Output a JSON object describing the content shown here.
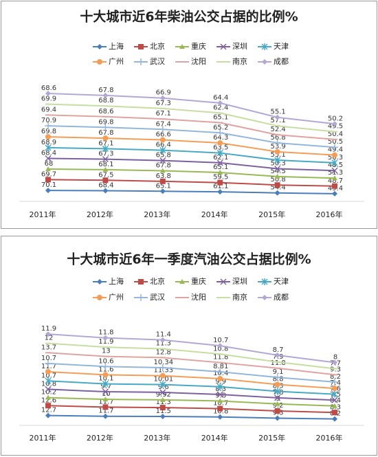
{
  "chart_data": [
    {
      "type": "line",
      "stacked": true,
      "title": "十大城市近6年柴油公交占据的比例%",
      "categories": [
        "2011年",
        "2012年",
        "2013年",
        "2014年",
        "2015年",
        "2016年"
      ],
      "ylim": [
        0,
        800
      ],
      "series": [
        {
          "name": "上海",
          "color": "#4a7ebb",
          "marker": "diamond",
          "values": [
            70.1,
            68.4,
            65.1,
            61.1,
            54.4,
            49.4
          ]
        },
        {
          "name": "北京",
          "color": "#be4b48",
          "marker": "square",
          "values": [
            69.7,
            67.5,
            63.8,
            59.5,
            50.8,
            48.7
          ]
        },
        {
          "name": "重庆",
          "color": "#98b954",
          "marker": "triangle",
          "values": [
            68,
            68.1,
            67.8,
            65.1,
            54.5,
            51.3
          ]
        },
        {
          "name": "深圳",
          "color": "#7d60a0",
          "marker": "x",
          "values": [
            68.4,
            67.3,
            65.8,
            62.1,
            50.3,
            48.5
          ]
        },
        {
          "name": "天津",
          "color": "#46aac5",
          "marker": "asterisk",
          "values": [
            68.9,
            67.1,
            66.4,
            63.5,
            55.1,
            50.3
          ]
        },
        {
          "name": "广州",
          "color": "#f59d56",
          "marker": "circle",
          "values": [
            69.8,
            67.8,
            66.6,
            64.3,
            53.9,
            49.4
          ]
        },
        {
          "name": "武汉",
          "color": "#93b6dc",
          "marker": "plus",
          "values": [
            70.9,
            69.8,
            67.4,
            65.2,
            56.8,
            50.5
          ]
        },
        {
          "name": "沈阳",
          "color": "#e0a3a1",
          "marker": "none",
          "values": [
            69.4,
            68.6,
            67.1,
            65.1,
            52.4,
            50.4
          ]
        },
        {
          "name": "南京",
          "color": "#c6dea0",
          "marker": "none",
          "values": [
            69.9,
            68.8,
            67.3,
            62.4,
            57.1,
            49.5
          ]
        },
        {
          "name": "成都",
          "color": "#b4a7d5",
          "marker": "diamond",
          "values": [
            68.6,
            67.8,
            66.9,
            64.4,
            55.1,
            50.2
          ]
        }
      ]
    },
    {
      "type": "line",
      "stacked": true,
      "title": "十大城市近6年一季度汽油公交占据比例%",
      "categories": [
        "2011年",
        "2012年",
        "2013年",
        "2014年",
        "2015年",
        "2016年"
      ],
      "ylim": [
        0,
        140
      ],
      "series": [
        {
          "name": "上海",
          "color": "#4a7ebb",
          "marker": "diamond",
          "values": [
            12.7,
            11.7,
            11.5,
            10.8,
            9.3,
            8.2
          ]
        },
        {
          "name": "北京",
          "color": "#be4b48",
          "marker": "square",
          "values": [
            12.6,
            11.7,
            11.3,
            10.7,
            9.2,
            8.3
          ]
        },
        {
          "name": "重庆",
          "color": "#98b954",
          "marker": "triangle",
          "values": [
            10.2,
            10,
            9.92,
            9.8,
            9,
            8.4
          ]
        },
        {
          "name": "深圳",
          "color": "#7d60a0",
          "marker": "x",
          "values": [
            10.8,
            9.7,
            9.6,
            8.3,
            7.8,
            7.5
          ]
        },
        {
          "name": "天津",
          "color": "#46aac5",
          "marker": "asterisk",
          "values": [
            10.7,
            10.1,
            10.01,
            9.9,
            8.3,
            7.6
          ]
        },
        {
          "name": "广州",
          "color": "#f59d56",
          "marker": "circle",
          "values": [
            11.7,
            11.6,
            11.33,
            10.4,
            8.8,
            7.4
          ]
        },
        {
          "name": "武汉",
          "color": "#93b6dc",
          "marker": "plus",
          "values": [
            10.7,
            10.6,
            10.34,
            8.81,
            9.1,
            8.2
          ]
        },
        {
          "name": "沈阳",
          "color": "#e0a3a1",
          "marker": "none",
          "values": [
            13.7,
            13,
            12.8,
            11.8,
            11.8,
            9.3
          ]
        },
        {
          "name": "南京",
          "color": "#c6dea0",
          "marker": "none",
          "values": [
            12,
            11.9,
            11.3,
            10.8,
            7.9,
            7.7
          ]
        },
        {
          "name": "成都",
          "color": "#b4a7d5",
          "marker": "diamond",
          "values": [
            11.9,
            11.8,
            11.4,
            10.7,
            8.7,
            8
          ]
        }
      ]
    }
  ]
}
